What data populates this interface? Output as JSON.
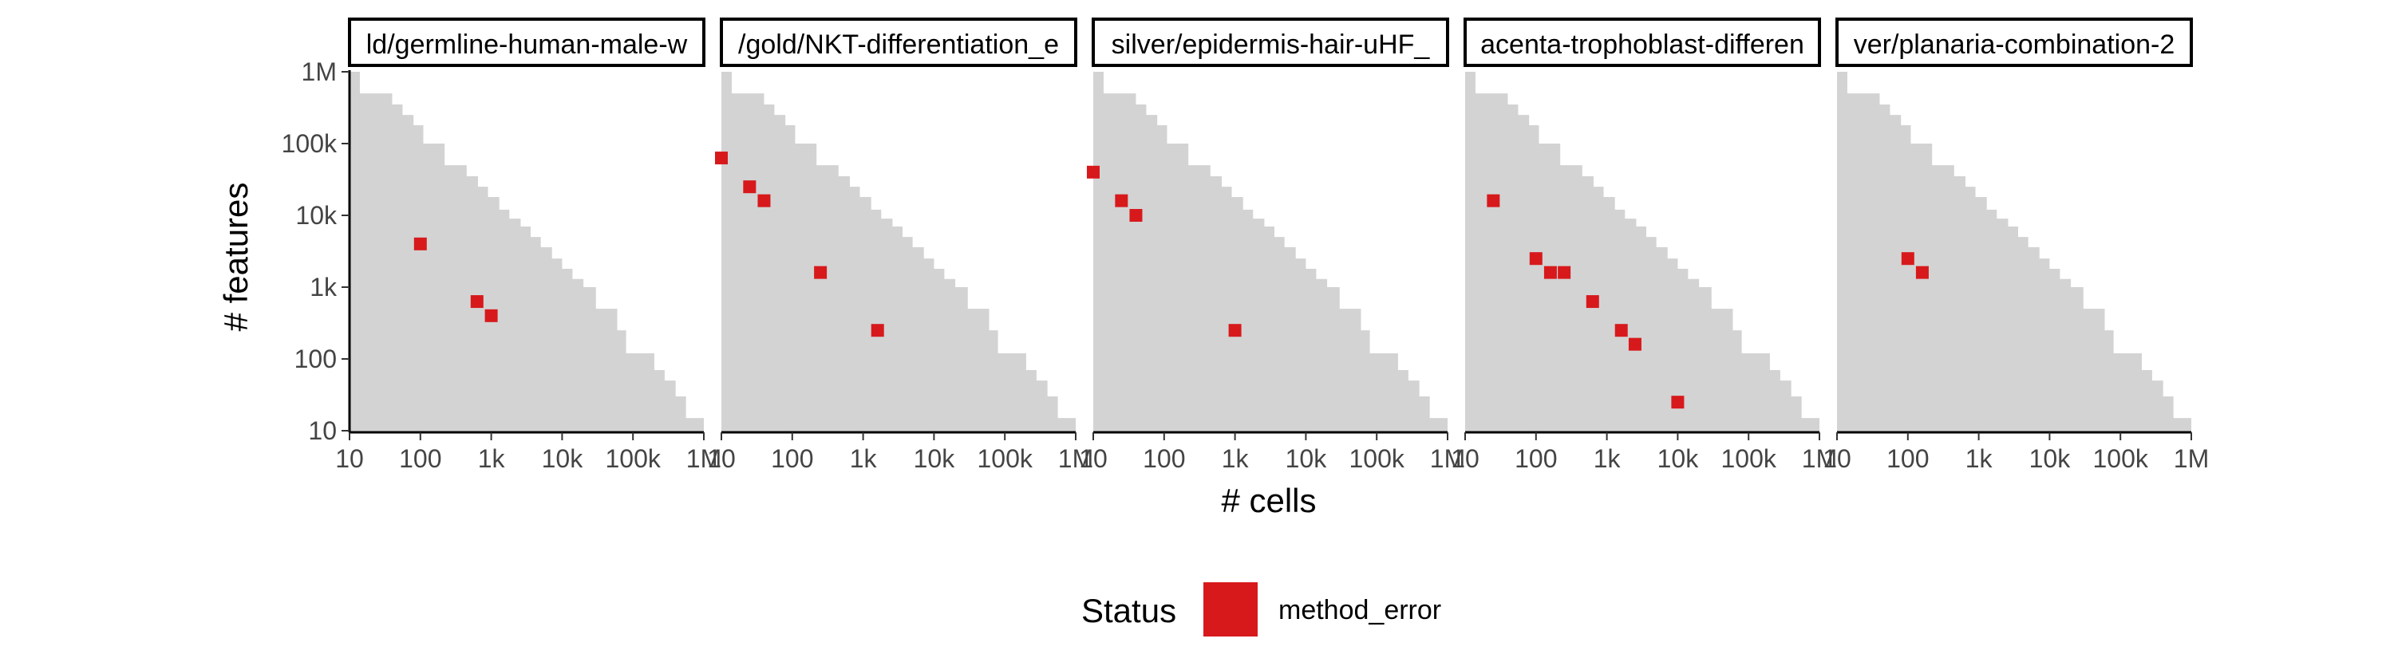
{
  "chart_data": {
    "type": "heatmap",
    "xlabel": "# cells",
    "ylabel": "# features",
    "x_scale": "log10",
    "y_scale": "log10",
    "xlim": [
      10,
      1000000
    ],
    "ylim": [
      10,
      1000000
    ],
    "x_ticks": [
      {
        "value": 10,
        "label": "10"
      },
      {
        "value": 100,
        "label": "100"
      },
      {
        "value": 1000,
        "label": "1k"
      },
      {
        "value": 10000,
        "label": "10k"
      },
      {
        "value": 100000,
        "label": "100k"
      },
      {
        "value": 1000000,
        "label": "1M"
      }
    ],
    "y_ticks": [
      {
        "value": 10,
        "label": "10"
      },
      {
        "value": 100,
        "label": "100"
      },
      {
        "value": 1000,
        "label": "1k"
      },
      {
        "value": 10000,
        "label": "10k"
      },
      {
        "value": 100000,
        "label": "100k"
      },
      {
        "value": 1000000,
        "label": "1M"
      }
    ],
    "grid": false,
    "background_region": {
      "color": "#d3d3d3",
      "steps": [
        {
          "x": 10,
          "y": 1000000
        },
        {
          "x": 14,
          "y": 500000
        },
        {
          "x": 28,
          "y": 500000
        },
        {
          "x": 40,
          "y": 350000
        },
        {
          "x": 56,
          "y": 250000
        },
        {
          "x": 80,
          "y": 180000
        },
        {
          "x": 110,
          "y": 100000
        },
        {
          "x": 220,
          "y": 50000
        },
        {
          "x": 450,
          "y": 35000
        },
        {
          "x": 650,
          "y": 25000
        },
        {
          "x": 900,
          "y": 18000
        },
        {
          "x": 1300,
          "y": 12000
        },
        {
          "x": 1800,
          "y": 9000
        },
        {
          "x": 2600,
          "y": 7000
        },
        {
          "x": 3600,
          "y": 5000
        },
        {
          "x": 5000,
          "y": 3600
        },
        {
          "x": 7200,
          "y": 2500
        },
        {
          "x": 10000,
          "y": 1800
        },
        {
          "x": 14000,
          "y": 1300
        },
        {
          "x": 20000,
          "y": 1000
        },
        {
          "x": 30000,
          "y": 500
        },
        {
          "x": 60000,
          "y": 250
        },
        {
          "x": 80000,
          "y": 120
        },
        {
          "x": 200000,
          "y": 70
        },
        {
          "x": 280000,
          "y": 50
        },
        {
          "x": 400000,
          "y": 30
        },
        {
          "x": 560000,
          "y": 15
        },
        {
          "x": 1000000,
          "y": 15
        }
      ]
    },
    "panels": [
      {
        "label": "ld/germline-human-male-w",
        "points": [
          {
            "x": 100,
            "y": 4000
          },
          {
            "x": 630,
            "y": 630
          },
          {
            "x": 1000,
            "y": 400
          }
        ]
      },
      {
        "label": "/gold/NKT-differentiation_e",
        "points": [
          {
            "x": 10,
            "y": 63000
          },
          {
            "x": 25,
            "y": 25000
          },
          {
            "x": 40,
            "y": 16000
          },
          {
            "x": 250,
            "y": 1600
          },
          {
            "x": 1600,
            "y": 250
          }
        ]
      },
      {
        "label": "silver/epidermis-hair-uHF_",
        "points": [
          {
            "x": 10,
            "y": 40000
          },
          {
            "x": 25,
            "y": 16000
          },
          {
            "x": 40,
            "y": 10000
          },
          {
            "x": 1000,
            "y": 250
          }
        ]
      },
      {
        "label": "acenta-trophoblast-differen",
        "points": [
          {
            "x": 25,
            "y": 16000
          },
          {
            "x": 100,
            "y": 2500
          },
          {
            "x": 160,
            "y": 1600
          },
          {
            "x": 250,
            "y": 1600
          },
          {
            "x": 630,
            "y": 630
          },
          {
            "x": 1600,
            "y": 250
          },
          {
            "x": 2500,
            "y": 160
          },
          {
            "x": 10000,
            "y": 25
          }
        ]
      },
      {
        "label": "ver/planaria-combination-2",
        "points": [
          {
            "x": 100,
            "y": 2500
          },
          {
            "x": 160,
            "y": 1600
          }
        ]
      }
    ],
    "series": [
      {
        "name": "method_error",
        "color": "#d7191c"
      }
    ],
    "legend": {
      "title": "Status",
      "placement": "bottom",
      "entries": [
        "method_error"
      ]
    }
  }
}
